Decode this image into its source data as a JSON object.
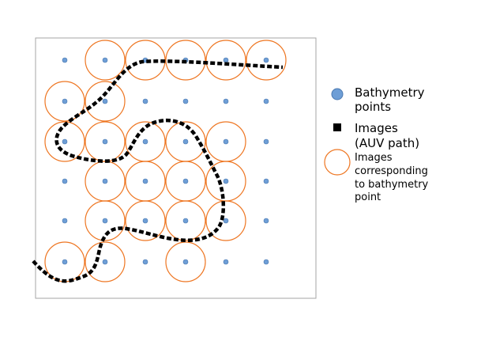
{
  "legend": {
    "bathymetry": [
      "Bathymetry",
      "points"
    ],
    "images": [
      "Images",
      "(AUV path)"
    ],
    "corresponding": [
      "Images",
      "corresponding",
      "to bathymetry",
      "point"
    ]
  },
  "colors": {
    "point_fill": "#6e9ed6",
    "point_stroke": "#4a78b0",
    "circle_stroke": "#ee7622",
    "path": "#000000",
    "frame": "#a6a6a6"
  },
  "grid": {
    "columns": 6,
    "rows": 6,
    "highlighted_cells": [
      [
        0,
        1
      ],
      [
        0,
        2
      ],
      [
        0,
        3
      ],
      [
        0,
        4
      ],
      [
        0,
        5
      ],
      [
        1,
        0
      ],
      [
        1,
        1
      ],
      [
        2,
        0
      ],
      [
        2,
        1
      ],
      [
        2,
        2
      ],
      [
        2,
        3
      ],
      [
        2,
        4
      ],
      [
        3,
        1
      ],
      [
        3,
        2
      ],
      [
        3,
        3
      ],
      [
        3,
        4
      ],
      [
        4,
        1
      ],
      [
        4,
        2
      ],
      [
        4,
        3
      ],
      [
        4,
        4
      ],
      [
        5,
        0
      ],
      [
        5,
        1
      ],
      [
        5,
        3
      ]
    ]
  }
}
